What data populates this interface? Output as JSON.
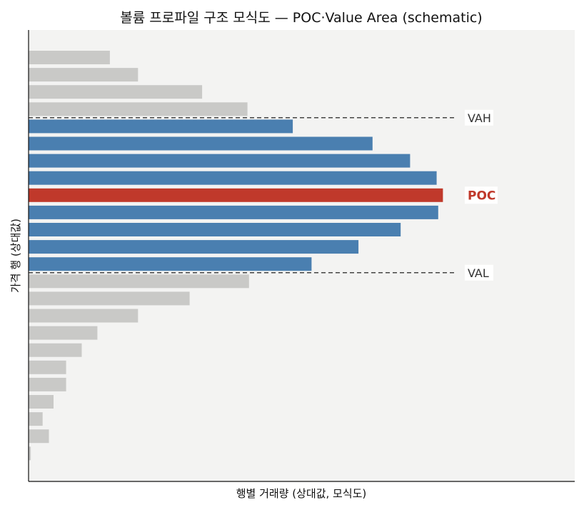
{
  "chart_data": {
    "type": "bar",
    "orientation": "horizontal",
    "title": "볼륨 프로파일 구조 모식도 — POC·Value Area (schematic)",
    "xlabel": "행별 거래량 (상대값, 모식도)",
    "ylabel": "가격 행 (상대값)",
    "xlim": [
      0,
      1.32
    ],
    "grid": false,
    "colors": {
      "outside": "#c9c9c7",
      "value_area": "#4a7fb0",
      "poc": "#c0392b",
      "plot_bg": "#f3f3f2",
      "ref_line": "#444444"
    },
    "rows_top_to_bottom": [
      {
        "value": 0.26,
        "zone": "outside"
      },
      {
        "value": 0.35,
        "zone": "outside"
      },
      {
        "value": 0.555,
        "zone": "outside"
      },
      {
        "value": 0.7,
        "zone": "outside"
      },
      {
        "value": 0.845,
        "zone": "value_area"
      },
      {
        "value": 1.1,
        "zone": "value_area"
      },
      {
        "value": 1.22,
        "zone": "value_area"
      },
      {
        "value": 1.305,
        "zone": "value_area"
      },
      {
        "value": 1.325,
        "zone": "poc"
      },
      {
        "value": 1.31,
        "zone": "value_area"
      },
      {
        "value": 1.19,
        "zone": "value_area"
      },
      {
        "value": 1.055,
        "zone": "value_area"
      },
      {
        "value": 0.905,
        "zone": "value_area"
      },
      {
        "value": 0.705,
        "zone": "outside"
      },
      {
        "value": 0.515,
        "zone": "outside"
      },
      {
        "value": 0.35,
        "zone": "outside"
      },
      {
        "value": 0.22,
        "zone": "outside"
      },
      {
        "value": 0.17,
        "zone": "outside"
      },
      {
        "value": 0.12,
        "zone": "outside"
      },
      {
        "value": 0.12,
        "zone": "outside"
      },
      {
        "value": 0.08,
        "zone": "outside"
      },
      {
        "value": 0.045,
        "zone": "outside"
      },
      {
        "value": 0.065,
        "zone": "outside"
      },
      {
        "value": 0.007,
        "zone": "outside"
      }
    ],
    "reference_lines": [
      {
        "label": "VAH",
        "between_rows": [
          3,
          4
        ],
        "style": "dashed"
      },
      {
        "label": "VAL",
        "between_rows": [
          12,
          13
        ],
        "style": "dashed"
      }
    ],
    "poc_label": "POC"
  }
}
